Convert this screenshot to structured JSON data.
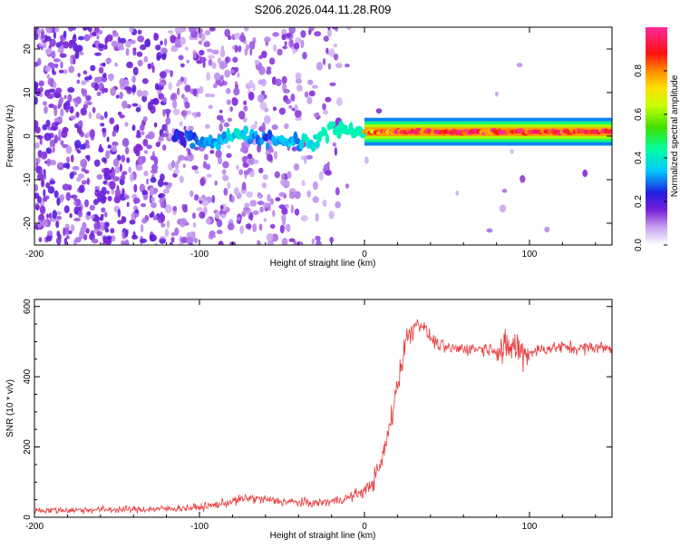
{
  "title": "S206.2026.044.11.28.R09",
  "chart_data": [
    {
      "type": "heatmap",
      "xlabel": "Height of straight line (km)",
      "ylabel": "Frequency (Hz)",
      "xlim": [
        -200,
        150
      ],
      "ylim": [
        -25,
        25
      ],
      "x_ticks": [
        -200,
        -100,
        0,
        100
      ],
      "y_ticks": [
        -20,
        -10,
        0,
        10,
        20
      ],
      "colorbar": {
        "label": "Normalized spectral amplitude",
        "range": [
          0,
          1
        ],
        "ticks": [
          "0.0",
          "0.2",
          "0.4",
          "0.6",
          "0.8"
        ]
      },
      "ridge": {
        "x": [
          -110,
          -100,
          -90,
          -80,
          -70,
          -60,
          -50,
          -40,
          -30,
          -20,
          -10,
          0,
          10,
          20,
          30,
          40,
          50,
          60,
          70,
          80,
          90,
          100,
          110,
          120,
          130,
          140,
          150
        ],
        "y": [
          0,
          -1.5,
          -2,
          1,
          0,
          -0.5,
          -1,
          -1.5,
          -1,
          1.5,
          1.2,
          1,
          1,
          1,
          1,
          1,
          1,
          1,
          1,
          1,
          1,
          1,
          1,
          1,
          1,
          1,
          1
        ],
        "amplitude": [
          0.25,
          0.3,
          0.35,
          0.4,
          0.35,
          0.3,
          0.35,
          0.35,
          0.45,
          0.5,
          0.6,
          0.75,
          0.85,
          0.9,
          0.92,
          0.95,
          0.95,
          0.95,
          0.95,
          0.95,
          0.95,
          0.95,
          0.95,
          0.95,
          0.95,
          0.95,
          0.95
        ]
      }
    },
    {
      "type": "line",
      "xlabel": "Height of straight line (km)",
      "ylabel": "SNR (10 * v/v)",
      "xlim": [
        -200,
        150
      ],
      "ylim": [
        0,
        620
      ],
      "x_ticks": [
        -200,
        -100,
        0,
        100
      ],
      "y_ticks": [
        0,
        200,
        400,
        600
      ],
      "series": [
        {
          "color": "#e83a3a",
          "x": [
            -200,
            -180,
            -160,
            -140,
            -120,
            -100,
            -90,
            -80,
            -70,
            -60,
            -50,
            -40,
            -30,
            -20,
            -10,
            0,
            5,
            10,
            15,
            20,
            25,
            30,
            35,
            40,
            45,
            50,
            60,
            70,
            80,
            85,
            90,
            95,
            100,
            110,
            120,
            130,
            140,
            150
          ],
          "y": [
            20,
            20,
            22,
            22,
            24,
            28,
            35,
            45,
            55,
            50,
            45,
            42,
            40,
            45,
            55,
            75,
            100,
            150,
            250,
            380,
            500,
            550,
            550,
            510,
            490,
            480,
            480,
            480,
            480,
            470,
            490,
            470,
            470,
            480,
            485,
            480,
            485,
            480
          ]
        }
      ]
    }
  ]
}
